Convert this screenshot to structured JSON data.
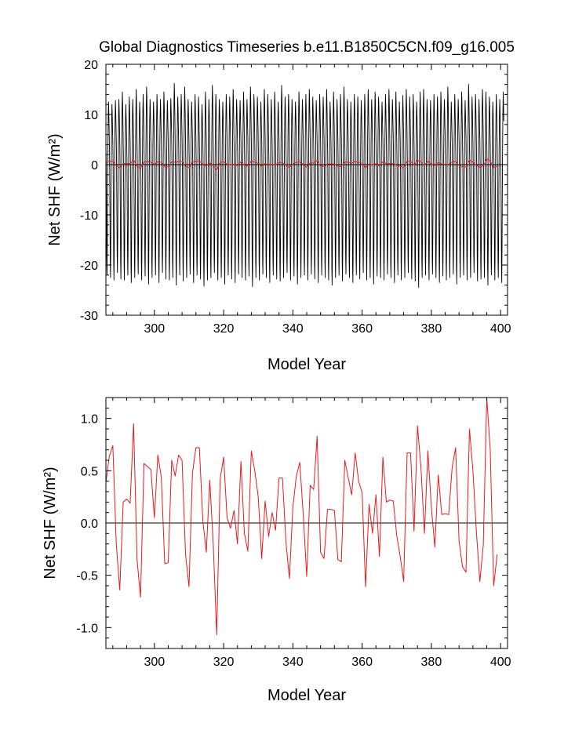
{
  "figure_title": "Global Diagnostics Timeseries b.e11.B1850C5CN.f09_g16.005",
  "colors": {
    "monthly": "#000000",
    "annual": "#e8191c",
    "axes": "#000000",
    "zero_line": "#000000"
  },
  "chart_data": [
    {
      "type": "line",
      "title": "Global Diagnostics Timeseries b.e11.B1850C5CN.f09_g16.005",
      "xlabel": "Model Year",
      "ylabel": "Net SHF (W/m²)",
      "xlim": [
        286,
        402
      ],
      "ylim": [
        -30,
        20
      ],
      "xticks": [
        300,
        320,
        340,
        360,
        380,
        400
      ],
      "yticks": [
        -30,
        -20,
        -10,
        0,
        10,
        20
      ],
      "xtick_labels": [
        "300",
        "320",
        "340",
        "360",
        "380",
        "400"
      ],
      "ytick_labels": [
        "-30",
        "-20",
        "-10",
        "0",
        "10",
        "20"
      ],
      "reference_line": 0,
      "series": [
        {
          "name": "monthly",
          "color": "#000000",
          "x_start": 286,
          "step": 1,
          "y_max": [
            12.5,
            12.0,
            12.8,
            13.0,
            14.5,
            12.0,
            13.5,
            13.0,
            15.0,
            12.5,
            14.0,
            15.5,
            13.0,
            12.5,
            14.0,
            13.0,
            14.5,
            12.8,
            13.2,
            16.2,
            13.5,
            14.0,
            15.5,
            13.0,
            12.5,
            14.0,
            13.5,
            12.0,
            14.5,
            13.0,
            15.8,
            14.0,
            13.0,
            12.5,
            14.0,
            13.5,
            15.0,
            13.0,
            12.8,
            14.5,
            13.0,
            15.5,
            14.0,
            13.5,
            12.5,
            15.0,
            14.0,
            13.0,
            14.5,
            12.5,
            15.8,
            13.5,
            14.0,
            13.0,
            12.5,
            14.5,
            13.0,
            14.0,
            15.0,
            13.5,
            12.8,
            14.0,
            13.5,
            15.0,
            12.5,
            14.5,
            13.0,
            14.0,
            15.5,
            13.0,
            12.5,
            14.0,
            13.5,
            12.8,
            14.0,
            15.0,
            13.0,
            14.5,
            13.5,
            12.5,
            14.0,
            15.0,
            13.0,
            14.5,
            12.5,
            13.8,
            15.0,
            13.5,
            14.0,
            12.5,
            14.5,
            15.0,
            13.0,
            12.8,
            14.0,
            13.5,
            14.5,
            13.0,
            15.5,
            12.5,
            14.0,
            13.0,
            14.5,
            12.8,
            16.0,
            13.5,
            14.0,
            13.0,
            15.0,
            14.5,
            13.5,
            12.5,
            14.0,
            13.0,
            14.5
          ],
          "y_min": [
            -22.0,
            -22.5,
            -23.0,
            -21.5,
            -22.8,
            -23.0,
            -22.0,
            -23.5,
            -22.5,
            -21.8,
            -23.0,
            -22.2,
            -23.8,
            -22.5,
            -22.0,
            -23.5,
            -21.5,
            -22.8,
            -23.0,
            -22.5,
            -24.0,
            -22.0,
            -23.2,
            -22.5,
            -21.8,
            -23.5,
            -22.0,
            -22.8,
            -24.2,
            -23.0,
            -22.5,
            -21.5,
            -23.0,
            -22.5,
            -23.8,
            -22.0,
            -22.8,
            -23.5,
            -21.8,
            -22.5,
            -23.0,
            -22.2,
            -24.3,
            -22.5,
            -23.0,
            -21.8,
            -22.5,
            -23.5,
            -22.0,
            -22.8,
            -23.2,
            -22.5,
            -21.5,
            -23.0,
            -22.2,
            -23.8,
            -22.5,
            -22.0,
            -23.0,
            -21.8,
            -22.8,
            -23.5,
            -22.0,
            -22.5,
            -23.0,
            -24.0,
            -22.5,
            -22.0,
            -23.2,
            -21.8,
            -22.5,
            -23.5,
            -22.0,
            -22.8,
            -21.5,
            -23.0,
            -22.5,
            -23.8,
            -22.2,
            -22.5,
            -23.0,
            -21.8,
            -22.5,
            -23.5,
            -22.0,
            -23.0,
            -22.5,
            -21.5,
            -22.8,
            -23.2,
            -24.5,
            -22.5,
            -22.0,
            -23.0,
            -21.8,
            -22.5,
            -23.5,
            -22.2,
            -23.0,
            -22.5,
            -21.8,
            -23.8,
            -22.5,
            -22.0,
            -23.0,
            -22.5,
            -21.5,
            -23.2,
            -22.8,
            -22.5,
            -24.0,
            -22.0,
            -23.0,
            -22.5,
            -23.5,
            -22.0
          ]
        },
        {
          "name": "annual",
          "color": "#e8191c",
          "x_start": 286,
          "step": 1,
          "y": [
            0.39,
            0.64,
            0.74,
            -0.2,
            -0.64,
            0.2,
            0.23,
            0.19,
            0.95,
            -0.35,
            -0.71,
            0.57,
            0.54,
            0.51,
            0.05,
            0.65,
            0.44,
            -0.39,
            -0.38,
            0.6,
            0.45,
            0.65,
            0.6,
            -0.3,
            -0.61,
            0.48,
            0.72,
            0.72,
            0.02,
            -0.28,
            0.41,
            -0.2,
            -1.07,
            0.42,
            0.63,
            0.05,
            -0.05,
            0.12,
            -0.2,
            0.59,
            -0.1,
            -0.27,
            0.69,
            0.5,
            0.25,
            -0.34,
            0.21,
            -0.13,
            0.1,
            -0.07,
            0.43,
            0.43,
            -0.18,
            -0.53,
            0.15,
            0.45,
            0.58,
            0.08,
            -0.51,
            0.36,
            0.32,
            0.83,
            -0.28,
            -0.34,
            0.13,
            0.13,
            0.12,
            -0.35,
            -0.37,
            0.6,
            0.43,
            0.27,
            0.67,
            0.4,
            0.29,
            -0.61,
            0.18,
            -0.1,
            0.27,
            -0.32,
            0.63,
            0.2,
            0.22,
            0.21,
            -0.12,
            -0.32,
            -0.56,
            0.67,
            0.67,
            -0.08,
            0.93,
            0.53,
            -0.1,
            0.69,
            0.15,
            -0.23,
            0.46,
            0.08,
            0.09,
            0.08,
            0.53,
            0.72,
            -0.17,
            -0.42,
            -0.47,
            0.9,
            0.5,
            -0.08,
            -0.56,
            -0.21,
            1.2,
            0.7,
            -0.6,
            -0.3
          ]
        }
      ]
    },
    {
      "type": "line",
      "title": "",
      "xlabel": "Model Year",
      "ylabel": "Net SHF (W/m²)",
      "xlim": [
        286,
        402
      ],
      "ylim": [
        -1.2,
        1.2
      ],
      "xticks": [
        300,
        320,
        340,
        360,
        380,
        400
      ],
      "yticks": [
        -1.0,
        -0.5,
        0.0,
        0.5,
        1.0
      ],
      "xtick_labels": [
        "300",
        "320",
        "340",
        "360",
        "380",
        "400"
      ],
      "ytick_labels": [
        "-1.0",
        "-0.5",
        "0.0",
        "0.5",
        "1.0"
      ],
      "reference_line": 0,
      "series": [
        {
          "name": "annual",
          "color": "#e8191c",
          "x_start": 286,
          "step": 1,
          "y": [
            0.39,
            0.64,
            0.74,
            -0.2,
            -0.64,
            0.2,
            0.23,
            0.19,
            0.95,
            -0.35,
            -0.71,
            0.57,
            0.54,
            0.51,
            0.05,
            0.65,
            0.44,
            -0.39,
            -0.38,
            0.6,
            0.45,
            0.65,
            0.6,
            -0.3,
            -0.61,
            0.48,
            0.72,
            0.72,
            0.02,
            -0.28,
            0.41,
            -0.2,
            -1.07,
            0.42,
            0.63,
            0.05,
            -0.05,
            0.12,
            -0.2,
            0.59,
            -0.1,
            -0.27,
            0.69,
            0.5,
            0.25,
            -0.34,
            0.21,
            -0.13,
            0.1,
            -0.07,
            0.43,
            0.43,
            -0.18,
            -0.53,
            0.15,
            0.45,
            0.58,
            0.08,
            -0.51,
            0.36,
            0.32,
            0.83,
            -0.28,
            -0.34,
            0.13,
            0.13,
            0.12,
            -0.35,
            -0.37,
            0.6,
            0.43,
            0.27,
            0.67,
            0.4,
            0.29,
            -0.61,
            0.18,
            -0.1,
            0.27,
            -0.32,
            0.63,
            0.2,
            0.22,
            0.21,
            -0.12,
            -0.32,
            -0.56,
            0.67,
            0.67,
            -0.08,
            0.93,
            0.53,
            -0.1,
            0.69,
            0.15,
            -0.23,
            0.46,
            0.08,
            0.09,
            0.08,
            0.53,
            0.72,
            -0.17,
            -0.42,
            -0.47,
            0.9,
            0.5,
            -0.08,
            -0.56,
            -0.21,
            1.2,
            0.7,
            -0.6,
            -0.3
          ]
        }
      ]
    }
  ]
}
